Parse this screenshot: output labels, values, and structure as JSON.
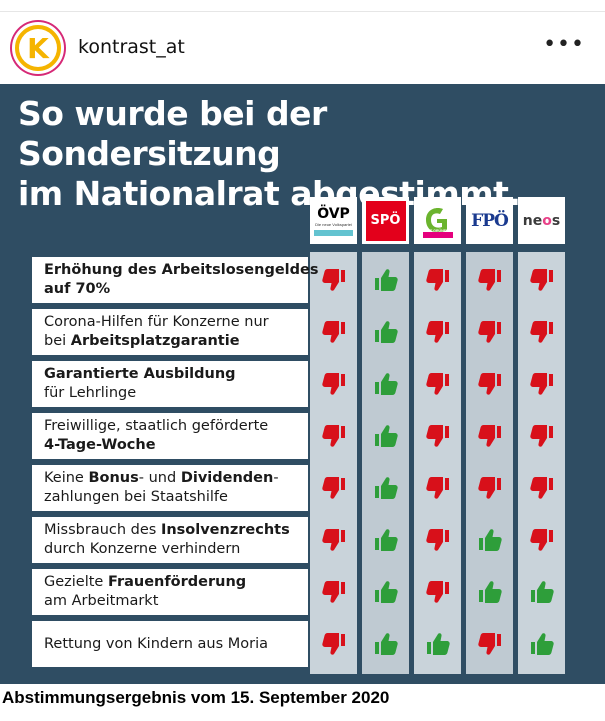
{
  "post": {
    "username": "kontrast_at",
    "avatar_letter": "K",
    "more_glyph": "•••"
  },
  "graphic": {
    "headline_line1": "So wurde bei der Sondersitzung",
    "headline_line2": "im Nationalrat abgestimmt.",
    "colors": {
      "background": "#2f4d63",
      "thumb_up": "#2e9e3a",
      "thumb_down": "#d8101a"
    },
    "parties": [
      {
        "key": "oevp",
        "label": "ÖVP",
        "sublabel": "Die neue Volkspartei"
      },
      {
        "key": "spoe",
        "label": "SPÖ"
      },
      {
        "key": "gruene",
        "label": "DIE GRÜNEN"
      },
      {
        "key": "fpoe",
        "label": "FPÖ"
      },
      {
        "key": "neos",
        "label": "neos"
      }
    ],
    "motions": [
      {
        "line1": [
          {
            "t": "Erhöhung des Arbeitslosengeldes",
            "b": true
          }
        ],
        "line2": [
          {
            "t": "auf 70%",
            "b": true
          }
        ],
        "votes": [
          "down",
          "up",
          "down",
          "down",
          "down"
        ]
      },
      {
        "line1": [
          {
            "t": "Corona-Hilfen für Konzerne nur",
            "b": false
          }
        ],
        "line2": [
          {
            "t": "bei ",
            "b": false
          },
          {
            "t": "Arbeitsplatzgarantie",
            "b": true
          }
        ],
        "votes": [
          "down",
          "up",
          "down",
          "down",
          "down"
        ]
      },
      {
        "line1": [
          {
            "t": "Garantierte Ausbildung",
            "b": true
          }
        ],
        "line2": [
          {
            "t": "für Lehrlinge",
            "b": false
          }
        ],
        "votes": [
          "down",
          "up",
          "down",
          "down",
          "down"
        ]
      },
      {
        "line1": [
          {
            "t": "Freiwillige, staatlich geförderte",
            "b": false
          }
        ],
        "line2": [
          {
            "t": "4-Tage-Woche",
            "b": true
          }
        ],
        "votes": [
          "down",
          "up",
          "down",
          "down",
          "down"
        ]
      },
      {
        "line1": [
          {
            "t": "Keine ",
            "b": false
          },
          {
            "t": "Bonus",
            "b": true
          },
          {
            "t": "- und ",
            "b": false
          },
          {
            "t": "Dividenden",
            "b": true
          },
          {
            "t": "-",
            "b": false
          }
        ],
        "line2": [
          {
            "t": "zahlungen bei Staatshilfe",
            "b": false
          }
        ],
        "votes": [
          "down",
          "up",
          "down",
          "down",
          "down"
        ]
      },
      {
        "line1": [
          {
            "t": "Missbrauch des ",
            "b": false
          },
          {
            "t": "Insolvenzrechts",
            "b": true
          }
        ],
        "line2": [
          {
            "t": "durch Konzerne verhindern",
            "b": false
          }
        ],
        "votes": [
          "down",
          "up",
          "down",
          "up",
          "down"
        ]
      },
      {
        "line1": [
          {
            "t": "Gezielte ",
            "b": false
          },
          {
            "t": "Frauenförderung",
            "b": true
          }
        ],
        "line2": [
          {
            "t": "am Arbeitmarkt",
            "b": false
          }
        ],
        "votes": [
          "down",
          "up",
          "down",
          "up",
          "up"
        ]
      },
      {
        "line1": [
          {
            "t": "Rettung von Kindern aus Moria",
            "b": false
          }
        ],
        "line2": [],
        "votes": [
          "down",
          "up",
          "up",
          "down",
          "up"
        ]
      }
    ]
  },
  "caption": "Abstimmungsergebnis vom 15. September 2020"
}
